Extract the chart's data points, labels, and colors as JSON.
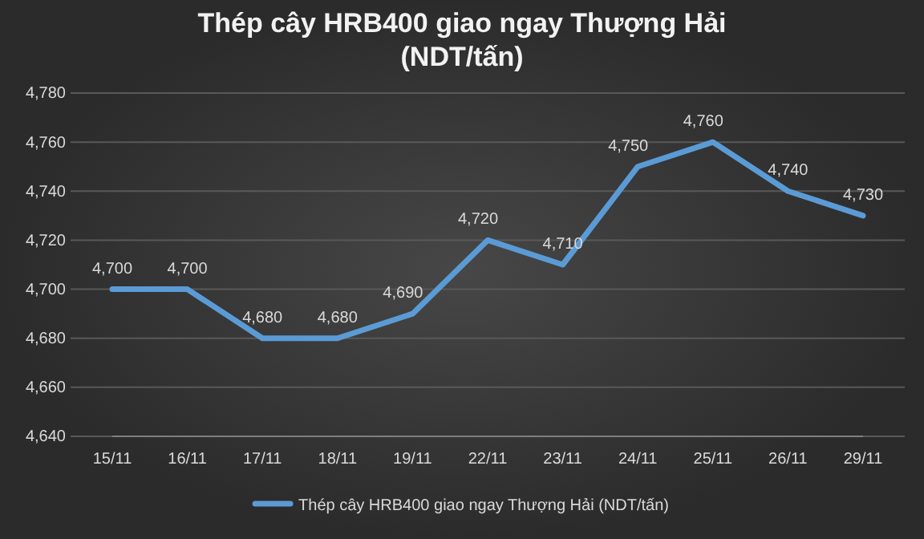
{
  "chart_data": {
    "type": "line",
    "title": "Thép cây HRB400 giao ngay Thượng Hải (NDT/tấn)",
    "categories": [
      "15/11",
      "16/11",
      "17/11",
      "18/11",
      "19/11",
      "22/11",
      "23/11",
      "24/11",
      "25/11",
      "26/11",
      "29/11"
    ],
    "series": [
      {
        "name": "Thép cây HRB400 giao ngay Thượng Hải (NDT/tấn)",
        "color": "#5b9bd5",
        "values": [
          4700,
          4700,
          4680,
          4680,
          4690,
          4720,
          4710,
          4750,
          4760,
          4740,
          4730
        ],
        "value_labels": [
          "4,700",
          "4,700",
          "4,680",
          "4,680",
          "4,690",
          "4,720",
          "4,710",
          "4,750",
          "4,760",
          "4,740",
          "4,730"
        ]
      }
    ],
    "ylim": [
      4640,
      4780
    ],
    "yticks": [
      {
        "value": 4640,
        "label": "4,640"
      },
      {
        "value": 4660,
        "label": "4,660"
      },
      {
        "value": 4680,
        "label": "4,680"
      },
      {
        "value": 4700,
        "label": "4,700"
      },
      {
        "value": 4720,
        "label": "4,720"
      },
      {
        "value": 4740,
        "label": "4,740"
      },
      {
        "value": 4760,
        "label": "4,760"
      },
      {
        "value": 4780,
        "label": "4,780"
      }
    ],
    "grid": "y",
    "legend": "bottom",
    "marker": "none",
    "line_style": "solid"
  }
}
